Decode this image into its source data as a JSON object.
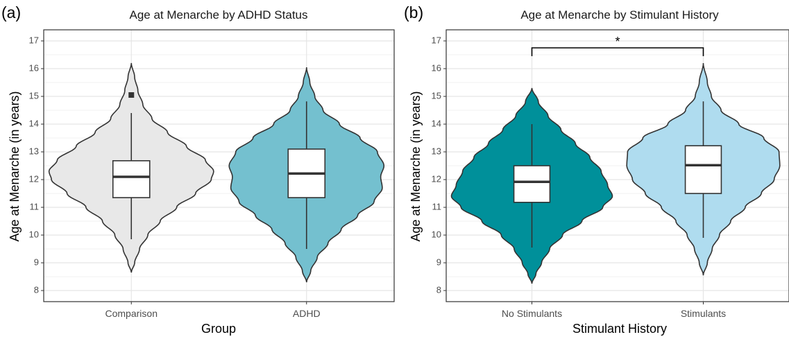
{
  "chart_data": [
    {
      "type": "violin",
      "panel_label": "(a)",
      "title": "Age at Menarche by ADHD Status",
      "xlabel": "Group",
      "ylabel": "Age at Menarche (in years)",
      "ylim": [
        7.6,
        17.4
      ],
      "yticks": [
        8,
        9,
        10,
        11,
        12,
        13,
        14,
        15,
        16,
        17
      ],
      "grid": true,
      "categories": [
        "Comparison",
        "ADHD"
      ],
      "series": [
        {
          "name": "Comparison",
          "color": "#e8e8e8",
          "violin_min": 8.65,
          "violin_max": 16.2,
          "density_profile": [
            [
              8.65,
              0
            ],
            [
              9.0,
              0.04
            ],
            [
              9.5,
              0.1
            ],
            [
              10,
              0.2
            ],
            [
              10.5,
              0.35
            ],
            [
              11,
              0.55
            ],
            [
              11.5,
              0.78
            ],
            [
              12,
              0.97
            ],
            [
              12.3,
              1.0
            ],
            [
              12.7,
              0.9
            ],
            [
              13.2,
              0.67
            ],
            [
              13.7,
              0.44
            ],
            [
              14.2,
              0.25
            ],
            [
              14.7,
              0.14
            ],
            [
              15.2,
              0.08
            ],
            [
              15.7,
              0.04
            ],
            [
              16.2,
              0
            ]
          ],
          "box": {
            "whisker_low": 9.85,
            "q1": 11.35,
            "median": 12.1,
            "q3": 12.68,
            "whisker_high": 14.4
          },
          "outliers": [
            15.05
          ]
        },
        {
          "name": "ADHD",
          "color": "#74c0cf",
          "violin_min": 8.3,
          "violin_max": 16.05,
          "density_profile": [
            [
              8.3,
              0
            ],
            [
              8.7,
              0.05
            ],
            [
              9.2,
              0.13
            ],
            [
              9.7,
              0.26
            ],
            [
              10.2,
              0.42
            ],
            [
              10.7,
              0.62
            ],
            [
              11.2,
              0.82
            ],
            [
              11.7,
              0.92
            ],
            [
              12.1,
              0.9
            ],
            [
              12.5,
              0.94
            ],
            [
              13,
              0.86
            ],
            [
              13.5,
              0.65
            ],
            [
              14,
              0.4
            ],
            [
              14.5,
              0.2
            ],
            [
              15,
              0.1
            ],
            [
              15.5,
              0.04
            ],
            [
              16.05,
              0
            ]
          ],
          "box": {
            "whisker_low": 9.5,
            "q1": 11.35,
            "median": 12.22,
            "q3": 13.1,
            "whisker_high": 14.82
          },
          "outliers": []
        }
      ]
    },
    {
      "type": "violin",
      "panel_label": "(b)",
      "title": "Age at Menarche by Stimulant History",
      "xlabel": "Stimulant History",
      "ylabel": "Age at Menarche (in years)",
      "ylim": [
        7.6,
        17.4
      ],
      "yticks": [
        8,
        9,
        10,
        11,
        12,
        13,
        14,
        15,
        16,
        17
      ],
      "grid": true,
      "categories": [
        "No Stimulants",
        "Stimulants"
      ],
      "series": [
        {
          "name": "No Stimulants",
          "color": "#00909a",
          "violin_min": 8.25,
          "violin_max": 15.3,
          "density_profile": [
            [
              8.25,
              0
            ],
            [
              8.6,
              0.05
            ],
            [
              9.0,
              0.12
            ],
            [
              9.5,
              0.22
            ],
            [
              10,
              0.38
            ],
            [
              10.5,
              0.62
            ],
            [
              11,
              0.88
            ],
            [
              11.4,
              1.0
            ],
            [
              11.8,
              0.94
            ],
            [
              12.3,
              0.86
            ],
            [
              12.8,
              0.72
            ],
            [
              13.3,
              0.54
            ],
            [
              13.8,
              0.36
            ],
            [
              14.3,
              0.2
            ],
            [
              14.8,
              0.08
            ],
            [
              15.3,
              0
            ]
          ],
          "box": {
            "whisker_low": 9.55,
            "q1": 11.18,
            "median": 11.92,
            "q3": 12.5,
            "whisker_high": 14.0
          },
          "outliers": []
        },
        {
          "name": "Stimulants",
          "color": "#afdcef",
          "violin_min": 8.55,
          "violin_max": 16.2,
          "density_profile": [
            [
              8.55,
              0
            ],
            [
              9.0,
              0.05
            ],
            [
              9.5,
              0.11
            ],
            [
              10,
              0.2
            ],
            [
              10.5,
              0.34
            ],
            [
              11,
              0.52
            ],
            [
              11.5,
              0.72
            ],
            [
              12,
              0.88
            ],
            [
              12.5,
              0.95
            ],
            [
              13,
              0.94
            ],
            [
              13.5,
              0.75
            ],
            [
              14,
              0.44
            ],
            [
              14.5,
              0.22
            ],
            [
              15,
              0.1
            ],
            [
              15.5,
              0.05
            ],
            [
              16.2,
              0
            ]
          ],
          "box": {
            "whisker_low": 9.9,
            "q1": 11.5,
            "median": 12.52,
            "q3": 13.22,
            "whisker_high": 14.82
          },
          "outliers": []
        }
      ],
      "annotations": [
        {
          "type": "significance_bracket",
          "between": [
            "No Stimulants",
            "Stimulants"
          ],
          "y": 16.75,
          "label": "*"
        }
      ]
    }
  ]
}
